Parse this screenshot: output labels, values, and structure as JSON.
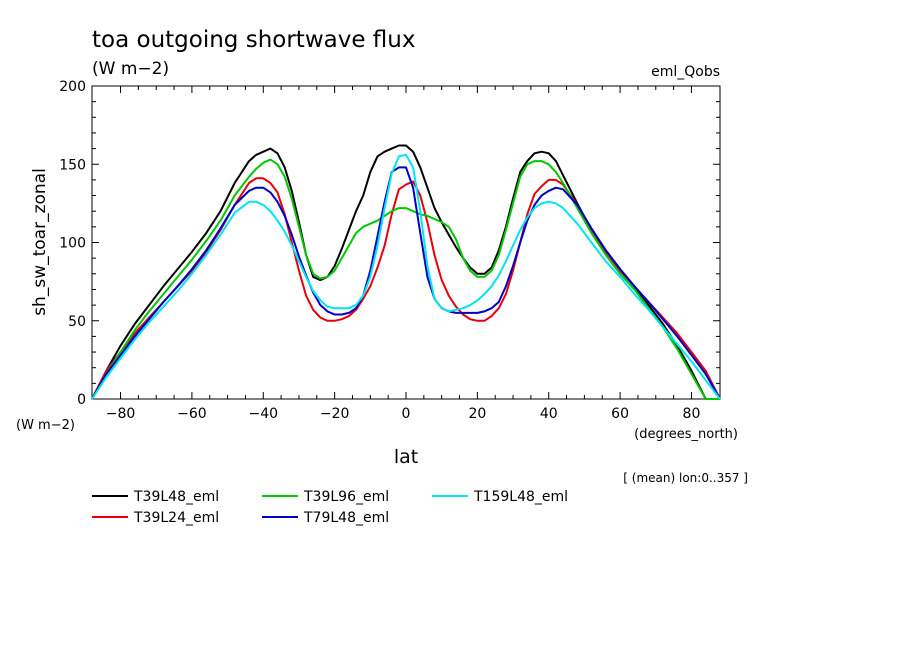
{
  "chart_data": {
    "type": "line",
    "title": "toa outgoing shortwave flux",
    "units_label": "(W m−2)",
    "experiment_label": "eml_Qobs",
    "ylabel": "sh_sw_toar_zonal",
    "y_units": "(W m−2)",
    "xlabel": "lat",
    "x_units": "(degrees_north)",
    "averaging_note": "[ (mean) lon:0..357 ]",
    "xlim": [
      -88,
      88
    ],
    "ylim": [
      0,
      200
    ],
    "x_ticks": [
      -80,
      -60,
      -40,
      -20,
      0,
      20,
      40,
      60,
      80
    ],
    "x_tick_labels": [
      "−80",
      "−60",
      "−40",
      "−20",
      "0",
      "20",
      "40",
      "60",
      "80"
    ],
    "y_ticks": [
      0,
      50,
      100,
      150,
      200
    ],
    "y_tick_labels": [
      "0",
      "50",
      "100",
      "150",
      "200"
    ],
    "grid": false,
    "legend_position": "bottom",
    "series": [
      {
        "name": "T39L48_eml",
        "color": "#000000",
        "x": [
          -88,
          -84,
          -80,
          -76,
          -72,
          -68,
          -64,
          -60,
          -56,
          -52,
          -48,
          -44,
          -42,
          -40,
          -38,
          -36,
          -34,
          -32,
          -30,
          -28,
          -26,
          -24,
          -22,
          -20,
          -18,
          -16,
          -14,
          -12,
          -10,
          -8,
          -6,
          -4,
          -2,
          0,
          2,
          4,
          6,
          8,
          10,
          12,
          14,
          16,
          18,
          20,
          22,
          24,
          26,
          28,
          30,
          32,
          34,
          36,
          38,
          40,
          42,
          44,
          48,
          52,
          56,
          60,
          64,
          68,
          72,
          76,
          80,
          84,
          88
        ],
        "y": [
          0,
          18,
          34,
          48,
          60,
          72,
          83,
          94,
          106,
          120,
          138,
          152,
          156,
          158,
          160,
          157,
          148,
          133,
          113,
          92,
          78,
          76,
          78,
          85,
          96,
          108,
          120,
          130,
          145,
          155,
          158,
          160,
          162,
          162,
          158,
          148,
          135,
          122,
          113,
          105,
          97,
          90,
          84,
          80,
          80,
          84,
          95,
          110,
          128,
          145,
          152,
          157,
          158,
          157,
          152,
          143,
          125,
          108,
          95,
          83,
          72,
          60,
          48,
          34,
          18,
          0,
          0
        ]
      },
      {
        "name": "T39L24_eml",
        "color": "#e8000b",
        "x": [
          -88,
          -84,
          -80,
          -76,
          -72,
          -68,
          -64,
          -60,
          -56,
          -52,
          -48,
          -44,
          -42,
          -40,
          -38,
          -36,
          -34,
          -32,
          -30,
          -28,
          -26,
          -24,
          -22,
          -20,
          -18,
          -16,
          -14,
          -12,
          -10,
          -8,
          -6,
          -4,
          -2,
          0,
          2,
          4,
          6,
          8,
          10,
          12,
          14,
          16,
          18,
          20,
          22,
          24,
          26,
          28,
          30,
          32,
          34,
          36,
          38,
          40,
          42,
          44,
          48,
          52,
          56,
          60,
          64,
          68,
          72,
          76,
          80,
          84,
          88
        ],
        "y": [
          0,
          18,
          30,
          42,
          52,
          62,
          72,
          82,
          94,
          108,
          124,
          138,
          141,
          141,
          138,
          132,
          118,
          100,
          82,
          66,
          57,
          52,
          50,
          50,
          51,
          53,
          57,
          64,
          72,
          84,
          98,
          118,
          134,
          137,
          139,
          130,
          113,
          92,
          76,
          66,
          59,
          54,
          51,
          50,
          50,
          53,
          58,
          67,
          82,
          100,
          118,
          131,
          136,
          140,
          140,
          137,
          124,
          108,
          94,
          82,
          72,
          62,
          52,
          42,
          30,
          18,
          0
        ]
      },
      {
        "name": "T39L96_eml",
        "color": "#00c800",
        "x": [
          -88,
          -84,
          -80,
          -76,
          -72,
          -68,
          -64,
          -60,
          -56,
          -52,
          -48,
          -44,
          -42,
          -40,
          -38,
          -36,
          -34,
          -32,
          -30,
          -28,
          -26,
          -24,
          -22,
          -20,
          -18,
          -16,
          -14,
          -12,
          -10,
          -8,
          -6,
          -4,
          -2,
          0,
          2,
          4,
          6,
          8,
          10,
          12,
          14,
          16,
          18,
          20,
          22,
          24,
          26,
          28,
          30,
          32,
          34,
          36,
          38,
          40,
          42,
          44,
          48,
          52,
          56,
          60,
          64,
          68,
          72,
          76,
          80,
          84,
          88
        ],
        "y": [
          0,
          16,
          30,
          44,
          56,
          67,
          78,
          89,
          101,
          114,
          130,
          142,
          147,
          151,
          153,
          150,
          142,
          128,
          110,
          92,
          80,
          77,
          78,
          82,
          90,
          98,
          106,
          110,
          112,
          114,
          117,
          120,
          122,
          122,
          120,
          118,
          117,
          115,
          113,
          110,
          102,
          90,
          82,
          78,
          78,
          82,
          92,
          108,
          125,
          142,
          150,
          152,
          152,
          150,
          145,
          138,
          122,
          106,
          92,
          80,
          70,
          58,
          46,
          32,
          16,
          0,
          0
        ]
      },
      {
        "name": "T79L48_eml",
        "color": "#0000c8",
        "x": [
          -88,
          -84,
          -80,
          -76,
          -72,
          -68,
          -64,
          -60,
          -56,
          -52,
          -48,
          -44,
          -42,
          -40,
          -38,
          -36,
          -34,
          -32,
          -30,
          -28,
          -26,
          -24,
          -22,
          -20,
          -18,
          -16,
          -14,
          -12,
          -10,
          -8,
          -6,
          -4,
          -2,
          0,
          2,
          4,
          6,
          8,
          10,
          12,
          14,
          16,
          18,
          20,
          22,
          24,
          26,
          28,
          30,
          32,
          34,
          36,
          38,
          40,
          42,
          44,
          48,
          52,
          56,
          60,
          64,
          68,
          72,
          76,
          80,
          84,
          88
        ],
        "y": [
          0,
          16,
          28,
          40,
          51,
          62,
          72,
          83,
          95,
          109,
          124,
          133,
          135,
          135,
          132,
          126,
          117,
          105,
          91,
          79,
          68,
          60,
          56,
          54,
          54,
          55,
          58,
          66,
          82,
          104,
          126,
          145,
          148,
          148,
          135,
          106,
          78,
          64,
          58,
          56,
          55,
          55,
          55,
          55,
          56,
          58,
          62,
          72,
          85,
          100,
          114,
          124,
          130,
          133,
          135,
          134,
          124,
          109,
          95,
          83,
          72,
          62,
          51,
          40,
          28,
          16,
          0
        ]
      },
      {
        "name": "T159L48_eml",
        "color": "#00e5ef",
        "x": [
          -88,
          -84,
          -80,
          -76,
          -72,
          -68,
          -64,
          -60,
          -56,
          -52,
          -48,
          -44,
          -42,
          -40,
          -38,
          -36,
          -34,
          -32,
          -30,
          -28,
          -26,
          -24,
          -22,
          -20,
          -18,
          -16,
          -14,
          -12,
          -10,
          -8,
          -6,
          -4,
          -2,
          0,
          2,
          4,
          6,
          8,
          10,
          12,
          14,
          16,
          18,
          20,
          22,
          24,
          26,
          28,
          30,
          32,
          34,
          36,
          38,
          40,
          42,
          44,
          48,
          52,
          56,
          60,
          64,
          68,
          72,
          76,
          80,
          84,
          88
        ],
        "y": [
          0,
          14,
          26,
          38,
          49,
          59,
          69,
          80,
          92,
          105,
          119,
          126,
          126,
          124,
          120,
          114,
          107,
          98,
          88,
          78,
          69,
          63,
          59,
          58,
          58,
          58,
          60,
          66,
          78,
          98,
          122,
          144,
          155,
          156,
          148,
          120,
          85,
          64,
          58,
          56,
          57,
          58,
          60,
          63,
          67,
          72,
          79,
          88,
          98,
          108,
          116,
          122,
          125,
          126,
          125,
          122,
          112,
          100,
          88,
          78,
          67,
          57,
          46,
          35,
          24,
          12,
          0
        ]
      }
    ]
  }
}
